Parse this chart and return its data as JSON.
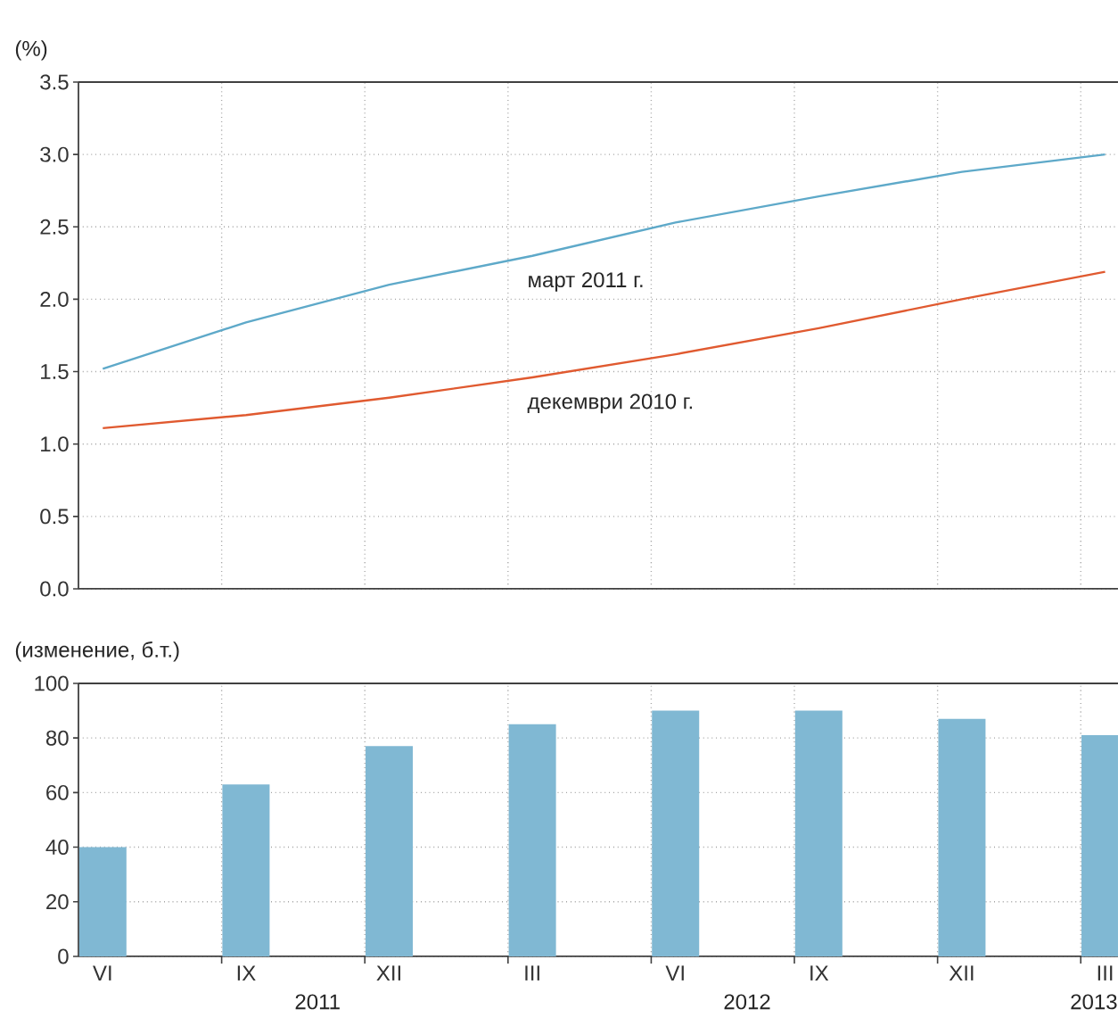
{
  "chart_data": [
    {
      "type": "line",
      "ylabel": "(%)",
      "categories": [
        null,
        null,
        null,
        null,
        null,
        null,
        null,
        null
      ],
      "series": [
        {
          "name": "март 2011 г.",
          "color": "#5ea9c9",
          "values": [
            1.52,
            1.84,
            2.1,
            2.3,
            2.53,
            2.71,
            2.88,
            3.0
          ]
        },
        {
          "name": "декември 2010 г.",
          "color": "#e05a30",
          "values": [
            1.11,
            1.2,
            1.32,
            1.46,
            1.62,
            1.8,
            2.0,
            2.19
          ]
        }
      ],
      "ylim": [
        0,
        3.5
      ],
      "yticks": [
        {
          "value": 0,
          "label": "0.0"
        },
        {
          "value": 0.5,
          "label": "0.5"
        },
        {
          "value": 1,
          "label": "1.0"
        },
        {
          "value": 1.5,
          "label": "1.5"
        },
        {
          "value": 2,
          "label": "2.0"
        },
        {
          "value": 2.5,
          "label": "2.5"
        },
        {
          "value": 3,
          "label": "3.0"
        },
        {
          "value": 3.5,
          "label": "3.5"
        }
      ],
      "grid": true,
      "tick_labels": "y"
    },
    {
      "type": "bar",
      "ylabel": "(изменение, б.т.)",
      "categories": [
        "VI",
        "IX",
        "XII",
        "III",
        "VI",
        "IX",
        "XII",
        "III"
      ],
      "values": [
        40,
        63,
        77,
        85,
        90,
        90,
        87,
        81
      ],
      "color": "#80b8d3",
      "ylim": [
        0,
        100
      ],
      "yticks": [
        0,
        20,
        40,
        60,
        80,
        100
      ],
      "grid": true,
      "annotations": [
        "2011",
        "2012",
        "2013"
      ]
    }
  ]
}
